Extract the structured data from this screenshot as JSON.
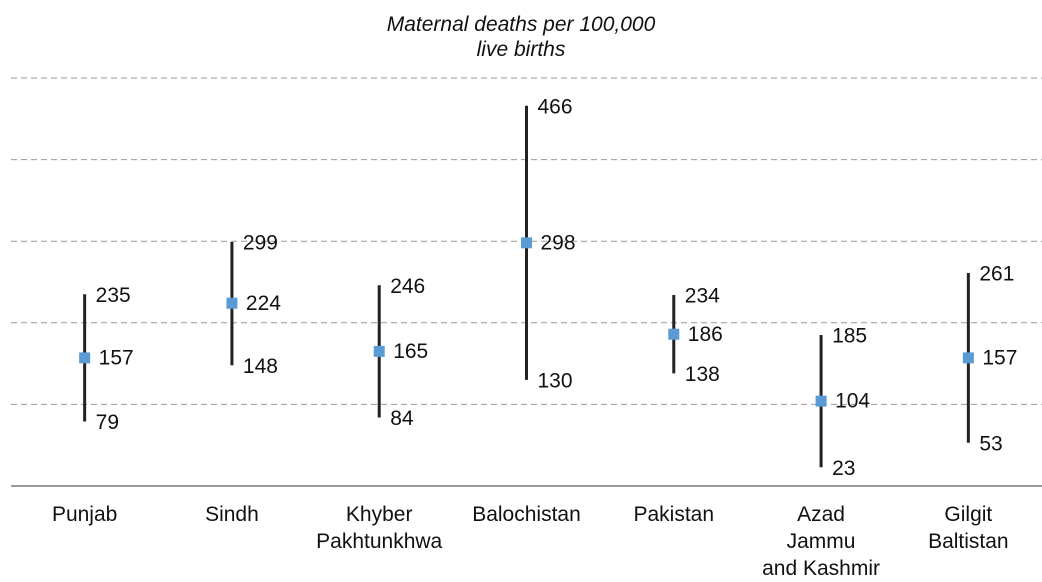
{
  "chart_data": {
    "type": "range",
    "title": "Maternal deaths per 100,000\nlive births",
    "categories": [
      "Punjab",
      "Sindh",
      "Khyber\nPakhtunkhwa",
      "Balochistan",
      "Pakistan",
      "Azad\nJammu\nand Kashmir",
      "Gilgit\nBaltistan"
    ],
    "values": [
      157,
      224,
      165,
      298,
      186,
      104,
      157
    ],
    "low": [
      79,
      148,
      84,
      130,
      138,
      23,
      53
    ],
    "high": [
      235,
      299,
      246,
      466,
      234,
      185,
      261
    ],
    "color": "#5b9bd5",
    "range_color": "#222222",
    "ylim": [
      0,
      500
    ],
    "yticks": [
      100,
      200,
      300,
      400,
      500
    ],
    "grid": true
  }
}
